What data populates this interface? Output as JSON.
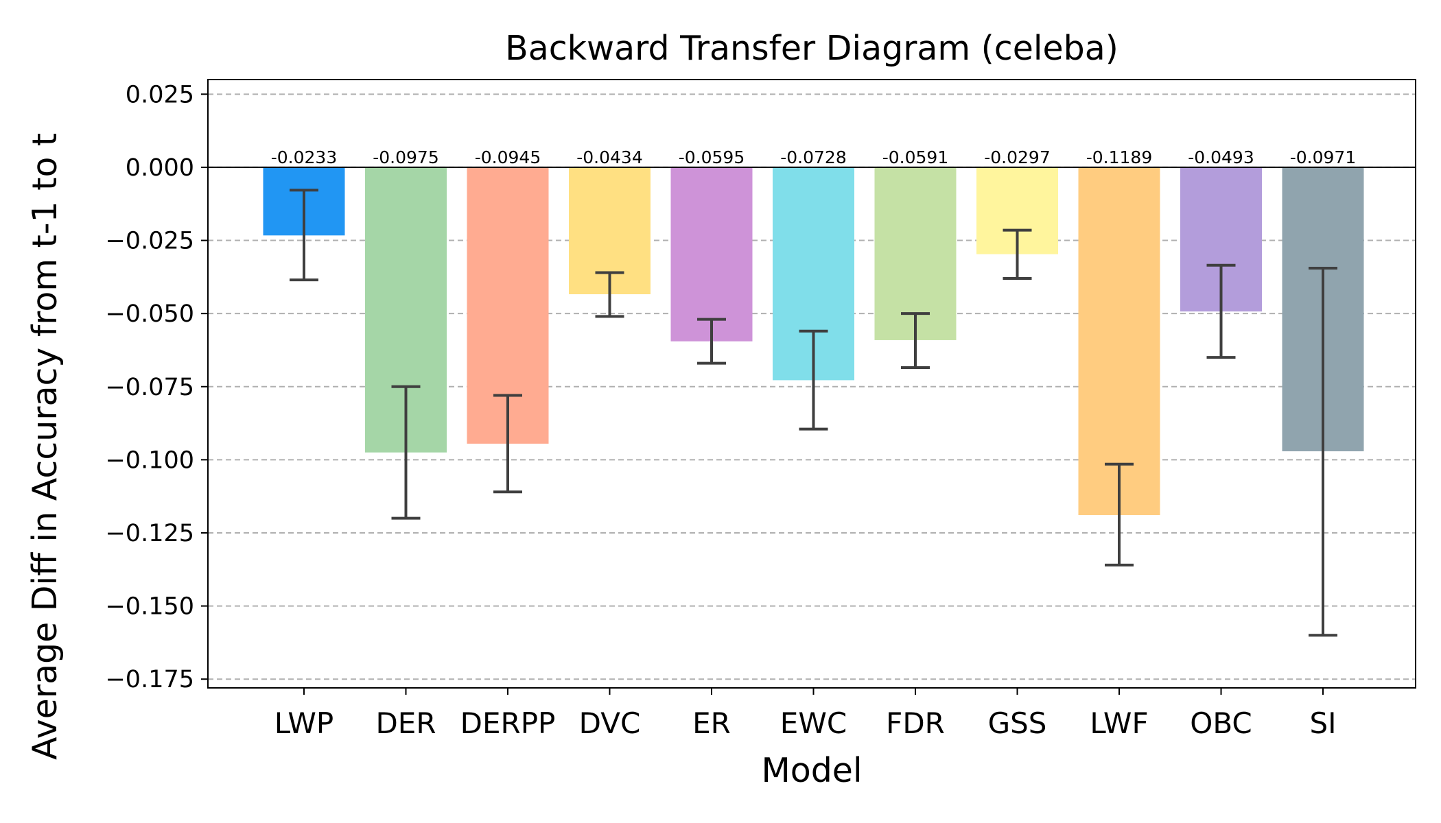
{
  "chart_data": {
    "type": "bar",
    "title": "Backward Transfer Diagram (celeba)",
    "xlabel": "Model",
    "ylabel": "Average Diff in Accuracy from t-1 to t",
    "categories": [
      "LWP",
      "DER",
      "DERPP",
      "DVC",
      "ER",
      "EWC",
      "FDR",
      "GSS",
      "LWF",
      "OBC",
      "SI"
    ],
    "values": [
      -0.0233,
      -0.0975,
      -0.0945,
      -0.0434,
      -0.0595,
      -0.0728,
      -0.0591,
      -0.0297,
      -0.1189,
      -0.0493,
      -0.0971
    ],
    "value_labels": [
      "-0.0233",
      "-0.0975",
      "-0.0945",
      "-0.0434",
      "-0.0595",
      "-0.0728",
      "-0.0591",
      "-0.0297",
      "-0.1189",
      "-0.0493",
      "-0.0971"
    ],
    "error_low": [
      -0.0385,
      -0.12,
      -0.111,
      -0.051,
      -0.067,
      -0.0895,
      -0.0685,
      -0.038,
      -0.136,
      -0.065,
      -0.16
    ],
    "error_high": [
      -0.0078,
      -0.075,
      -0.078,
      -0.036,
      -0.052,
      -0.056,
      -0.05,
      -0.0215,
      -0.1015,
      -0.0335,
      -0.0345
    ],
    "colors": [
      "#2196f3",
      "#a5d6a7",
      "#ffab91",
      "#ffe082",
      "#ce93d8",
      "#80deea",
      "#c5e1a5",
      "#fff59d",
      "#ffcc80",
      "#b39ddb",
      "#90a4ae"
    ],
    "ylim": [
      -0.178,
      0.03
    ],
    "yticks": [
      0.025,
      0.0,
      -0.025,
      -0.05,
      -0.075,
      -0.1,
      -0.125,
      -0.15,
      -0.175
    ],
    "ytick_labels": [
      "0.025",
      "0.000",
      "−0.025",
      "−0.050",
      "−0.075",
      "−0.100",
      "−0.125",
      "−0.150",
      "−0.175"
    ],
    "grid": "y-dashed",
    "zero_line": true
  }
}
